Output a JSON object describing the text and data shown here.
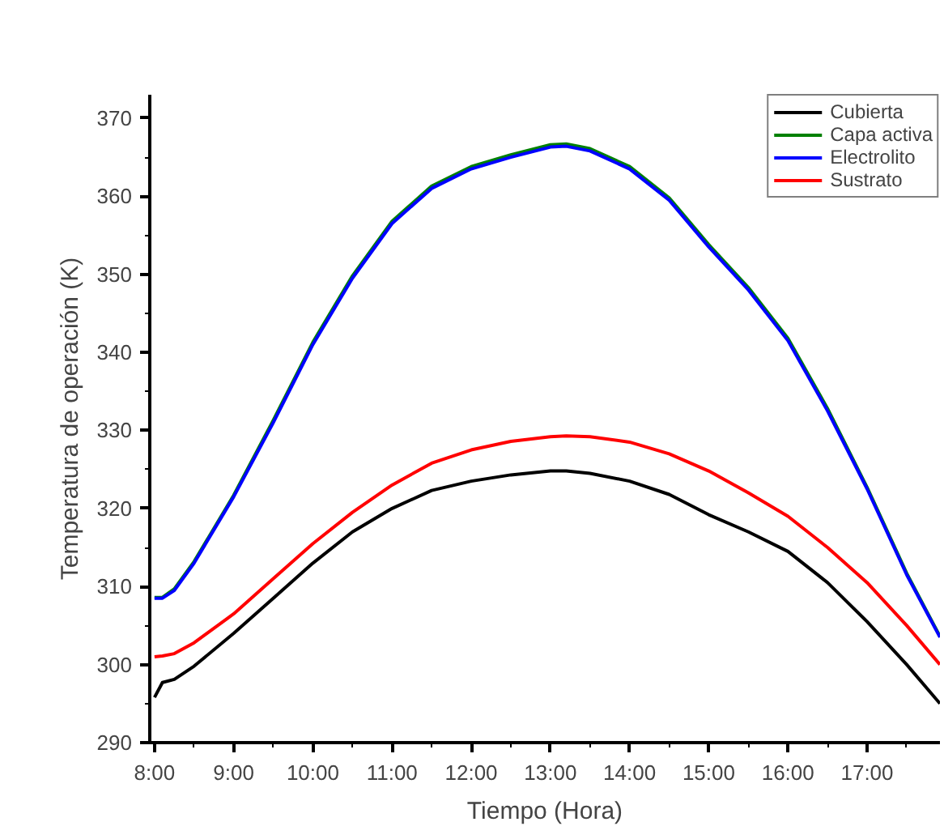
{
  "chart_data": {
    "type": "line",
    "xlabel": "Tiempo (Hora)",
    "ylabel": "Temperatura de operación (K)",
    "xlim": [
      7.94,
      17.92
    ],
    "ylim": [
      290,
      373
    ],
    "xticks": [
      {
        "value": 8,
        "label": "8:00"
      },
      {
        "value": 9,
        "label": "9:00"
      },
      {
        "value": 10,
        "label": "10:00"
      },
      {
        "value": 11,
        "label": "11:00"
      },
      {
        "value": 12,
        "label": "12:00"
      },
      {
        "value": 13,
        "label": "13:00"
      },
      {
        "value": 14,
        "label": "14:00"
      },
      {
        "value": 15,
        "label": "15:00"
      },
      {
        "value": 16,
        "label": "16:00"
      },
      {
        "value": 17,
        "label": "17:00"
      }
    ],
    "yticks": [
      290,
      300,
      310,
      320,
      330,
      340,
      350,
      360,
      370
    ],
    "grid": false,
    "legend": "top right",
    "marker": "none",
    "line_style": "solid",
    "x": [
      8.0,
      8.1,
      8.25,
      8.5,
      9.0,
      9.5,
      10.0,
      10.5,
      11.0,
      11.5,
      12.0,
      12.5,
      13.0,
      13.2,
      13.5,
      14.0,
      14.5,
      15.0,
      15.5,
      16.0,
      16.5,
      17.0,
      17.5,
      17.92
    ],
    "series": [
      {
        "name": "Cubierta",
        "color": "#000000",
        "values": [
          295.8,
          297.7,
          298.1,
          299.8,
          304,
          308.5,
          313,
          317,
          320,
          322.3,
          323.5,
          324.3,
          324.8,
          324.8,
          324.5,
          323.5,
          321.8,
          319.2,
          317,
          314.5,
          310.5,
          305.5,
          300,
          295
        ]
      },
      {
        "name": "Capa activa",
        "color": "#008000",
        "values": [
          308.6,
          308.6,
          309.7,
          313.2,
          321.7,
          331.3,
          341.3,
          349.8,
          356.8,
          361.3,
          363.8,
          365.3,
          366.6,
          366.7,
          366.1,
          363.8,
          359.8,
          353.8,
          348.3,
          341.8,
          332.8,
          322.7,
          311.7,
          303.6
        ]
      },
      {
        "name": "Electrolito",
        "color": "#0000ff",
        "values": [
          308.5,
          308.5,
          309.5,
          313,
          321.5,
          331,
          341,
          349.5,
          356.5,
          361,
          363.5,
          365,
          366.3,
          366.4,
          365.8,
          363.5,
          359.5,
          353.5,
          348,
          341.5,
          332.5,
          322.5,
          311.5,
          303.5
        ]
      },
      {
        "name": "Sustrato",
        "color": "#ff0000",
        "values": [
          301,
          301.1,
          301.4,
          302.8,
          306.5,
          311,
          315.5,
          319.5,
          323,
          325.8,
          327.5,
          328.6,
          329.2,
          329.3,
          329.2,
          328.5,
          327,
          324.8,
          322,
          319,
          315,
          310.5,
          305,
          300
        ]
      }
    ]
  }
}
